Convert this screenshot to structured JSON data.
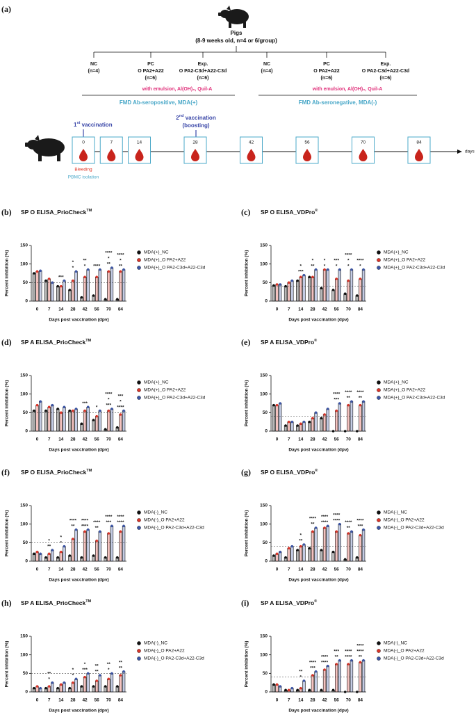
{
  "panel_a": {
    "label": "(a)",
    "pigs": {
      "title": "Pigs",
      "subtitle": "(8-9 weeks old, n=4 or 6/group)"
    },
    "cohorts": [
      {
        "name": "FMD Ab-seropositive,  MDA(+)",
        "adjuvant": "with emulsion, Al(OH)₃, Quil-A",
        "groups": [
          {
            "name": "NC",
            "n": "(n=4)"
          },
          {
            "name": "PC",
            "vaccine": "O PA2+A22",
            "n": "(n=6)"
          },
          {
            "name": "Exp.",
            "vaccine": "O PA2-C3d+A22-C3d",
            "n": "(n=6)"
          }
        ]
      },
      {
        "name": "FMD Ab-seronegative,  MDA(-)",
        "adjuvant": "with emulsion, Al(OH)₃, Quil-A",
        "groups": [
          {
            "name": "NC",
            "n": "(n=4)"
          },
          {
            "name": "PC",
            "vaccine": "O PA2+A22",
            "n": "(n=6)"
          },
          {
            "name": "Exp.",
            "vaccine": "O PA2-C3d+A22-C3d",
            "n": "(n=6)"
          }
        ]
      }
    ],
    "vaccinations": [
      {
        "number": "1",
        "suffix": "st",
        "text": " vaccination"
      },
      {
        "number": "2",
        "suffix": "nd",
        "text": " vaccination",
        "note": "(boosting)"
      }
    ],
    "sampling_days": [
      0,
      7,
      14,
      28,
      42,
      56,
      70,
      84
    ],
    "days_unit": "days",
    "bleeding": "Bleeding",
    "pbmc": "PBMC isolation"
  },
  "chart_data": [
    {
      "type": "bar",
      "panel": "(b)",
      "title": "SP O ELISA_PrioCheck",
      "title_superscript": "TM",
      "ylabel": "Percent inhibition (%)",
      "xlabel": "Days post vaccination (dpv)",
      "categories": [
        "0",
        "7",
        "14",
        "28",
        "42",
        "56",
        "70",
        "84"
      ],
      "series": [
        {
          "name": "MDA(+)_NC",
          "color": "#111111",
          "values": [
            75,
            55,
            40,
            30,
            10,
            15,
            5,
            5
          ]
        },
        {
          "name": "MDA(+)_O PA2+A22",
          "color": "#d9352a",
          "values": [
            80,
            60,
            40,
            55,
            65,
            65,
            80,
            80
          ]
        },
        {
          "name": "MDA(+)_O PA2-C3d+A22-C3d",
          "color": "#3c55a5",
          "values": [
            82,
            50,
            55,
            80,
            85,
            85,
            90,
            85
          ]
        }
      ],
      "ylim": [
        0,
        150
      ],
      "yticks": [
        0,
        50,
        100,
        150
      ],
      "reference_line": 50,
      "significance": [
        [],
        [],
        [
          "***"
        ],
        [
          "*",
          "*"
        ],
        [
          "*",
          "**"
        ],
        [
          "****"
        ],
        [
          "**",
          "*",
          "****"
        ],
        [
          "**",
          "*",
          "****"
        ]
      ]
    },
    {
      "type": "bar",
      "panel": "(c)",
      "title": "SP O ELISA_VDPro",
      "title_superscript": "®",
      "ylabel": "Percent inhibition (%)",
      "xlabel": "Days post vaccination (dpv)",
      "categories": [
        "0",
        "7",
        "14",
        "28",
        "42",
        "56",
        "70",
        "84"
      ],
      "series": [
        {
          "name": "MDA(+)_NC",
          "color": "#111111",
          "values": [
            42,
            40,
            55,
            65,
            35,
            30,
            20,
            15
          ]
        },
        {
          "name": "MDA(+)_O PA2+A22",
          "color": "#d9352a",
          "values": [
            45,
            50,
            65,
            65,
            85,
            60,
            55,
            60
          ]
        },
        {
          "name": "MDA(+)_O PA2-C3d+A22-C3d",
          "color": "#3c55a5",
          "values": [
            45,
            55,
            70,
            85,
            85,
            85,
            85,
            85
          ]
        }
      ],
      "ylim": [
        0,
        150
      ],
      "yticks": [
        0,
        50,
        100,
        150
      ],
      "reference_line": 40,
      "significance": [
        [],
        [],
        [
          "***",
          "*"
        ],
        [
          "**",
          "*"
        ],
        [
          "*",
          "*"
        ],
        [
          "*",
          "***"
        ],
        [
          "*",
          "*",
          "****"
        ],
        [
          "*",
          "****"
        ]
      ]
    },
    {
      "type": "bar",
      "panel": "(d)",
      "title": "SP A ELISA_PrioCheck",
      "title_superscript": "TM",
      "ylabel": "Percent inhibition (%)",
      "xlabel": "Days post vaccination (dpv)",
      "categories": [
        "0",
        "7",
        "14",
        "28",
        "42",
        "56",
        "70",
        "84"
      ],
      "series": [
        {
          "name": "MDA(+)_NC",
          "color": "#111111",
          "values": [
            55,
            55,
            60,
            55,
            20,
            30,
            5,
            10
          ]
        },
        {
          "name": "MDA(+)_O PA2+A22",
          "color": "#d9352a",
          "values": [
            70,
            65,
            50,
            55,
            55,
            40,
            55,
            45
          ]
        },
        {
          "name": "MDA(+)_O PA2-C3d+A22-C3d",
          "color": "#3c55a5",
          "values": [
            80,
            70,
            65,
            60,
            65,
            55,
            60,
            55
          ]
        }
      ],
      "ylim": [
        0,
        150
      ],
      "yticks": [
        0,
        50,
        100,
        150
      ],
      "reference_line": 50,
      "significance": [
        [],
        [],
        [],
        [],
        [
          "***"
        ],
        [
          "*"
        ],
        [
          "***",
          "*",
          "****"
        ],
        [
          "****",
          "*",
          "***"
        ]
      ]
    },
    {
      "type": "bar",
      "panel": "(e)",
      "title": "SP A ELISA_VDPro",
      "title_superscript": "®",
      "ylabel": "Percent inhibition (%)",
      "xlabel": "Days post vaccination (dpv)",
      "categories": [
        "0",
        "7",
        "14",
        "28",
        "42",
        "56",
        "70",
        "84"
      ],
      "series": [
        {
          "name": "MDA(+)_NC",
          "color": "#111111",
          "values": [
            70,
            15,
            15,
            25,
            35,
            0,
            0,
            0
          ]
        },
        {
          "name": "MDA(+)_O PA2+A22",
          "color": "#d9352a",
          "values": [
            70,
            25,
            20,
            35,
            45,
            55,
            70,
            70
          ]
        },
        {
          "name": "MDA(+)_O PA2-C3d+A22-C3d",
          "color": "#3c55a5",
          "values": [
            75,
            25,
            25,
            50,
            60,
            75,
            80,
            80
          ]
        }
      ],
      "ylim": [
        0,
        150
      ],
      "yticks": [
        0,
        50,
        100,
        150
      ],
      "reference_line": 40,
      "significance": [
        [],
        [],
        [],
        [],
        [],
        [
          "***",
          "****"
        ],
        [
          "**",
          "****"
        ],
        [
          "**",
          "****"
        ]
      ]
    },
    {
      "type": "bar",
      "panel": "(f)",
      "title": "SP O ELISA_PrioCheck",
      "title_superscript": "TM",
      "ylabel": "Percent inhibition (%)",
      "xlabel": "Days post vaccination (dpv)",
      "categories": [
        "0",
        "7",
        "14",
        "28",
        "42",
        "56",
        "70",
        "84"
      ],
      "series": [
        {
          "name": "MDA(-)_NC",
          "color": "#111111",
          "values": [
            20,
            10,
            10,
            15,
            10,
            15,
            10,
            10
          ]
        },
        {
          "name": "MDA(-)_O PA2+A22",
          "color": "#d9352a",
          "values": [
            25,
            20,
            25,
            60,
            80,
            55,
            75,
            80
          ]
        },
        {
          "name": "MDA(-)_O PA2-C3d+A22-C3d",
          "color": "#3c55a5",
          "values": [
            20,
            30,
            40,
            85,
            85,
            80,
            95,
            95
          ]
        }
      ],
      "ylim": [
        0,
        150
      ],
      "yticks": [
        0,
        50,
        100,
        150
      ],
      "reference_line": 50,
      "significance": [
        [],
        [
          "**",
          "*"
        ],
        [
          "*",
          "*"
        ],
        [
          "**",
          "****"
        ],
        [
          "****",
          "****"
        ],
        [
          "**",
          "****"
        ],
        [
          "***",
          "****"
        ],
        [
          "****",
          "****"
        ]
      ]
    },
    {
      "type": "bar",
      "panel": "(g)",
      "title": "SP O ELISA_VDPro",
      "title_superscript": "®",
      "ylabel": "Percent inhibition (%)",
      "xlabel": "Days post vaccination (dpv)",
      "categories": [
        "0",
        "7",
        "14",
        "28",
        "42",
        "56",
        "70",
        "84"
      ],
      "series": [
        {
          "name": "MDA(-)_NC",
          "color": "#111111",
          "values": [
            15,
            10,
            30,
            35,
            30,
            25,
            5,
            10
          ]
        },
        {
          "name": "MDA(-)_O PA2+A22",
          "color": "#d9352a",
          "values": [
            20,
            35,
            40,
            80,
            90,
            80,
            75,
            70
          ]
        },
        {
          "name": "MDA(-)_O PA2-C3d+A22-C3d",
          "color": "#3c55a5",
          "values": [
            25,
            40,
            45,
            90,
            95,
            100,
            80,
            85
          ]
        }
      ],
      "ylim": [
        0,
        150
      ],
      "yticks": [
        0,
        50,
        100,
        150
      ],
      "reference_line": 40,
      "significance": [
        [],
        [],
        [
          "**",
          "*"
        ],
        [
          "**",
          "****"
        ],
        [
          "****",
          "****"
        ],
        [
          "****",
          "****"
        ],
        [
          "**",
          "****"
        ],
        [
          "***",
          "****"
        ]
      ]
    },
    {
      "type": "bar",
      "panel": "(h)",
      "title": "SP A ELISA_PrioCheck",
      "title_superscript": "TM",
      "ylabel": "Percent inhibition (%)",
      "xlabel": "Days post vaccination (dpv)",
      "categories": [
        "0",
        "7",
        "14",
        "28",
        "42",
        "56",
        "70",
        "84"
      ],
      "series": [
        {
          "name": "MDA(-)_NC",
          "color": "#111111",
          "values": [
            10,
            10,
            10,
            10,
            15,
            15,
            15,
            15
          ]
        },
        {
          "name": "MDA(-)_O PA2+A22",
          "color": "#d9352a",
          "values": [
            15,
            15,
            20,
            25,
            40,
            30,
            35,
            45
          ]
        },
        {
          "name": "MDA(-)_O PA2-C3d+A22-C3d",
          "color": "#3c55a5",
          "values": [
            10,
            25,
            25,
            35,
            50,
            45,
            50,
            55
          ]
        }
      ],
      "ylim": [
        0,
        150
      ],
      "yticks": [
        0,
        50,
        100,
        150
      ],
      "reference_line": 50,
      "significance": [
        [],
        [
          "*",
          "**"
        ],
        [],
        [
          "*",
          "*"
        ],
        [
          "***",
          "*"
        ],
        [
          "**",
          "**"
        ],
        [
          "*",
          "**"
        ],
        [
          "**",
          "**"
        ]
      ]
    },
    {
      "type": "bar",
      "panel": "(i)",
      "title": "SP A ELISA_VDPro",
      "title_superscript": "®",
      "ylabel": "Percent inhibition (%)",
      "xlabel": "Days post vaccination (dpv)",
      "categories": [
        "0",
        "7",
        "14",
        "28",
        "42",
        "56",
        "70",
        "84"
      ],
      "series": [
        {
          "name": "MDA(-)_NC",
          "color": "#111111",
          "values": [
            20,
            5,
            5,
            5,
            5,
            5,
            0,
            0
          ]
        },
        {
          "name": "MDA(-)_O PA2+A22",
          "color": "#d9352a",
          "values": [
            20,
            5,
            10,
            45,
            60,
            75,
            75,
            80
          ]
        },
        {
          "name": "MDA(-)_O PA2-C3d+A22-C3d",
          "color": "#3c55a5",
          "values": [
            15,
            10,
            30,
            55,
            70,
            85,
            85,
            85
          ]
        }
      ],
      "ylim": [
        0,
        150
      ],
      "yticks": [
        0,
        50,
        100,
        150
      ],
      "reference_line": 40,
      "significance": [
        [],
        [],
        [
          "*",
          "**"
        ],
        [
          "***",
          "****"
        ],
        [
          "****",
          "****"
        ],
        [
          "**",
          "***"
        ],
        [
          "****",
          "****"
        ],
        [
          "**",
          "****",
          "****"
        ]
      ]
    }
  ]
}
